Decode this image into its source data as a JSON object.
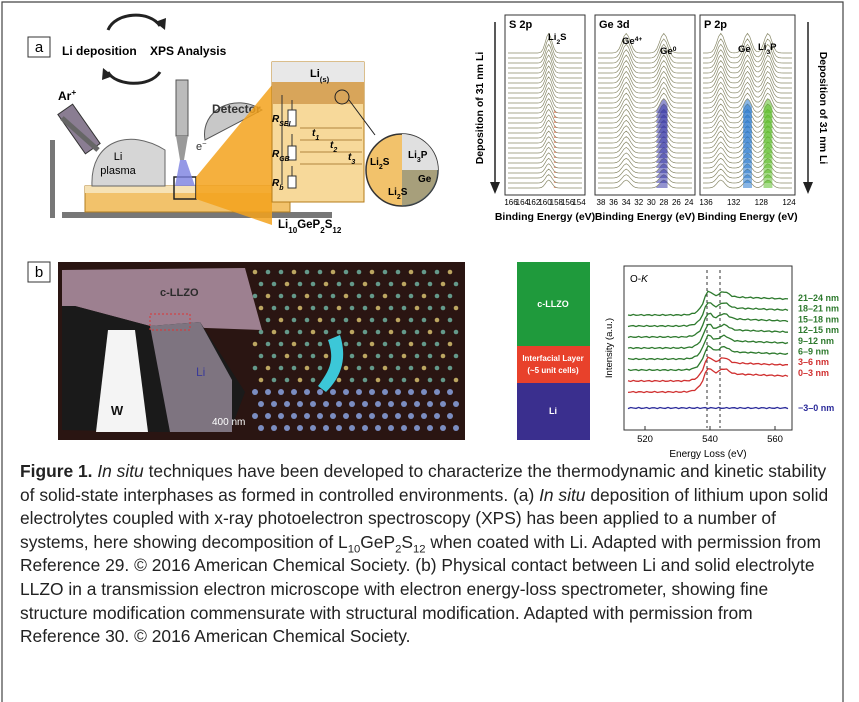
{
  "panel_a": {
    "label": "a",
    "cycle": [
      "Li deposition",
      "XPS Analysis"
    ],
    "ar": [
      "Ar",
      "+"
    ],
    "plasma": [
      "Li",
      "plasma"
    ],
    "detector": "Detector",
    "electron": [
      "e",
      "−"
    ],
    "li_s": [
      "Li",
      "(s)"
    ],
    "resistors": [
      [
        "R",
        "SEI"
      ],
      [
        "R",
        "GB"
      ],
      [
        "R",
        "b"
      ]
    ],
    "times": [
      [
        "t",
        "1"
      ],
      [
        "t",
        "2"
      ],
      [
        "t",
        "3"
      ]
    ],
    "phases": [
      [
        "Li",
        "2",
        "S"
      ],
      [
        "Li",
        "3",
        "P"
      ],
      [
        "Ge"
      ],
      [
        "Li",
        "2",
        "S"
      ]
    ],
    "electrolyte": [
      "Li",
      "10",
      "GeP",
      "2",
      "S",
      "12"
    ],
    "spectra": [
      {
        "title": "S 2p",
        "xticks": [
          166,
          164,
          162,
          160,
          158,
          156,
          154
        ],
        "xlabel": "Binding Energy (eV)",
        "annotations": [
          [
            "Li",
            "2",
            "S"
          ]
        ]
      },
      {
        "title": "Ge 3d",
        "xticks": [
          38,
          36,
          34,
          32,
          30,
          28,
          26,
          24
        ],
        "xlabel": "Binding Energy (eV)",
        "annotations": [
          [
            "Ge",
            "4+"
          ],
          [
            "Ge",
            "0"
          ]
        ]
      },
      {
        "title": "P 2p",
        "xticks": [
          136,
          132,
          128,
          124
        ],
        "xlabel": "Binding Energy (eV)",
        "annotations": [
          [
            "Ge"
          ],
          [
            "Li",
            "3",
            "P"
          ]
        ]
      }
    ],
    "deposition_labels": [
      "Deposition of 31 nm Li",
      "Deposition of 31 nm Li"
    ]
  },
  "panel_b": {
    "label": "b",
    "tem": {
      "c_llzo": "c-LLZO",
      "li": "Li",
      "w": "W",
      "scale": "400 nm"
    },
    "layers": [
      "c-LLZO",
      "Interfacial Layer",
      "(~5 unit cells)",
      "Li"
    ],
    "eels": {
      "edge": [
        "O-",
        "K"
      ],
      "ylabel": "Intensity (a.u.)",
      "xlabel": "Energy Loss (eV)",
      "xticks": [
        520,
        540,
        560
      ],
      "traces": [
        {
          "label": "21–24 nm",
          "color": "#2e7a2e"
        },
        {
          "label": "18–21 nm",
          "color": "#2e7a2e"
        },
        {
          "label": "15–18 nm",
          "color": "#2e7a2e"
        },
        {
          "label": "12–15 nm",
          "color": "#2e7a2e"
        },
        {
          "label": "9–12 nm",
          "color": "#2e7a2e"
        },
        {
          "label": "6–9 nm",
          "color": "#2e7a2e"
        },
        {
          "label": "3–6 nm",
          "color": "#d03030"
        },
        {
          "label": "0–3 nm",
          "color": "#d03030"
        },
        {
          "label": "−3–0 nm",
          "color": "#2a2a9a"
        }
      ]
    }
  },
  "caption": {
    "label": "Figure 1.",
    "parts": [
      "In situ",
      " techniques have been developed to characterize the thermodynamic and kinetic stability of solid-state interphases as formed in controlled environments. (a) ",
      "In situ",
      " deposition of lithium upon solid electrolytes coupled with x-ray photoelectron spectroscopy (XPS) has been applied to a number of systems, here showing decomposition of L",
      "10",
      "GeP",
      "2",
      "S",
      "12",
      " when coated with Li. Adapted with permission from Reference 29. © 2016 American Chemical Society. (b) Physical contact between Li and solid electrolyte LLZO in a transmission electron microscope with electron energy-loss spectrometer, showing fine structure modification commensurate with structural modification. Adapted with permission from Reference 30. © 2016 American Chemical Society."
    ]
  }
}
